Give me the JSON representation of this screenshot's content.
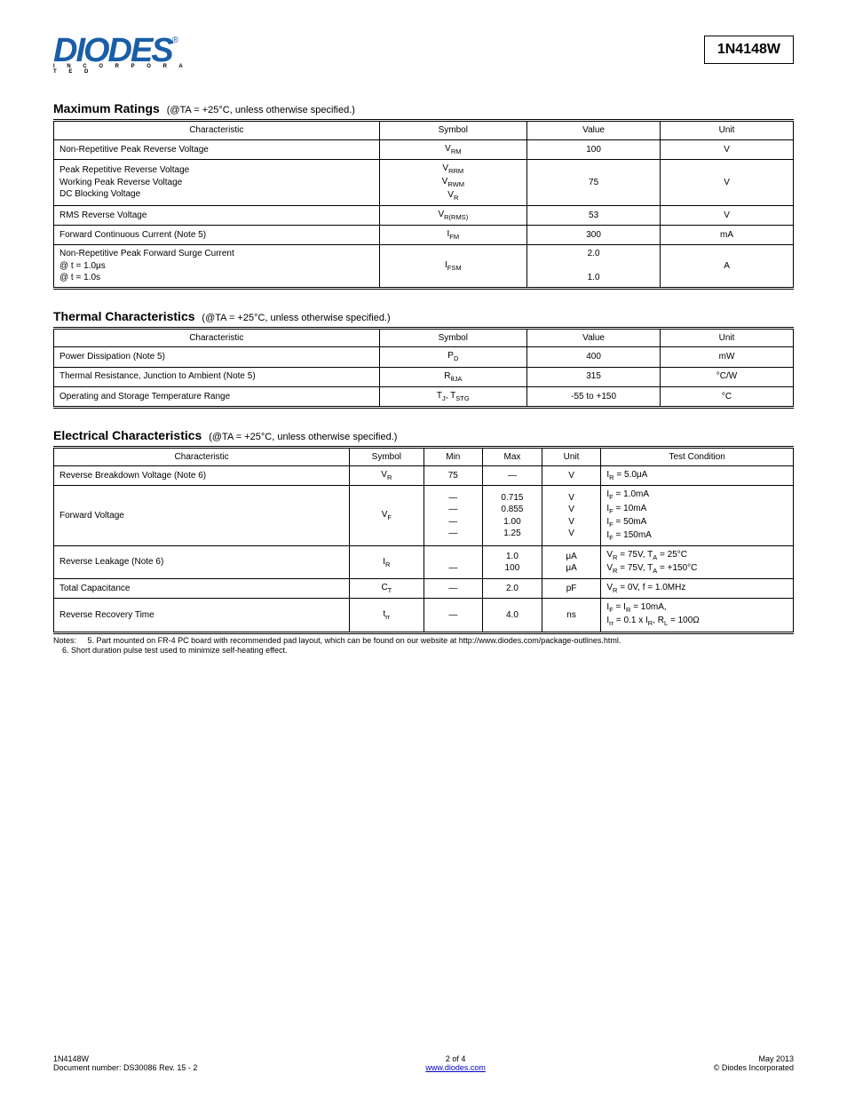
{
  "header": {
    "logo_main": "DIODES",
    "logo_sub": "I N C O R P O R A T E D",
    "part_number": "1N4148W"
  },
  "sections": {
    "ratings": {
      "title": "Maximum Ratings",
      "condition": "(@TA = +25°C, unless otherwise specified.)",
      "columns": [
        "Characteristic",
        "Symbol",
        "Value",
        "Unit"
      ],
      "col_widths": [
        "44%",
        "20%",
        "18%",
        "18%"
      ],
      "rows": [
        {
          "char": "Non-Repetitive Peak Reverse Voltage",
          "sym": "V<sub>RM</sub>",
          "val": "100",
          "unit": "V"
        },
        {
          "char": "Peak Repetitive Reverse Voltage<br>Working Peak Reverse Voltage<br>DC Blocking Voltage",
          "sym": "V<sub>RRM</sub><br>V<sub>RWM</sub><br>V<sub>R</sub>",
          "val": "75",
          "unit": "V"
        },
        {
          "char": "RMS Reverse Voltage",
          "sym": "V<sub>R(RMS)</sub>",
          "val": "53",
          "unit": "V"
        },
        {
          "char": "Forward Continuous Current (Note 5)",
          "sym": "I<sub>FM</sub>",
          "val": "300",
          "unit": "mA"
        },
        {
          "char": "Non-Repetitive Peak Forward Surge Current<br>@ t = 1.0μs<br>@ t = 1.0s",
          "sym": "I<sub>FSM</sub>",
          "val": "2.0<br><br>1.0",
          "unit": "A"
        }
      ]
    },
    "thermal": {
      "title": "Thermal Characteristics",
      "condition": "(@TA = +25°C, unless otherwise specified.)",
      "columns": [
        "Characteristic",
        "Symbol",
        "Value",
        "Unit"
      ],
      "col_widths": [
        "44%",
        "20%",
        "18%",
        "18%"
      ],
      "rows": [
        {
          "char": "Power Dissipation (Note 5)",
          "sym": "P<sub>D</sub>",
          "val": "400",
          "unit": "mW"
        },
        {
          "char": "Thermal Resistance, Junction to Ambient (Note 5)",
          "sym": "R<sub>θJA</sub>",
          "val": "315",
          "unit": "°C/W"
        },
        {
          "char": "Operating and Storage Temperature Range",
          "sym": "T<sub>J</sub>, T<sub>STG</sub>",
          "val": "-55 to +150",
          "unit": "°C"
        }
      ]
    },
    "electrical": {
      "title": "Electrical Characteristics",
      "condition": "(@TA = +25°C, unless otherwise specified.)",
      "columns": [
        "Characteristic",
        "Symbol",
        "Min",
        "Max",
        "Unit",
        "Test Condition"
      ],
      "col_widths": [
        "40%",
        "10%",
        "8%",
        "8%",
        "8%",
        "26%"
      ],
      "rows": [
        {
          "char": "Reverse Breakdown Voltage (Note 6)",
          "sym": "V<sub>R</sub>",
          "min": "75",
          "max": "—",
          "unit": "V",
          "cond": "I<sub>R</sub> = 5.0μA"
        },
        {
          "char": "Forward Voltage",
          "sym": "V<sub>F</sub>",
          "min": "—<br>—<br>—<br>—",
          "max": "0.715<br>0.855<br>1.00<br>1.25",
          "unit": "V<br>V<br>V<br>V",
          "cond": "I<sub>F</sub> = 1.0mA<br>I<sub>F</sub> = 10mA<br>I<sub>F</sub> = 50mA<br>I<sub>F</sub> = 150mA"
        },
        {
          "char": "Reverse Leakage (Note 6)",
          "sym": "I<sub>R</sub>",
          "min": "<br>—<br>",
          "max": "1.0<br>100",
          "unit": "μA<br>μA",
          "cond": "V<sub>R</sub> = 75V, T<sub>A</sub> = 25°C<br>V<sub>R</sub> = 75V, T<sub>A</sub> = +150°C"
        },
        {
          "char": "Total Capacitance",
          "sym": "C<sub>T</sub>",
          "min": "—",
          "max": "2.0",
          "unit": "pF",
          "cond": "V<sub>R</sub> = 0V, f = 1.0MHz"
        },
        {
          "char": "Reverse Recovery Time",
          "sym": "t<sub>rr</sub>",
          "min": "—",
          "max": "4.0",
          "unit": "ns",
          "cond": "I<sub>F</sub> = I<sub>R</sub> = 10mA,<br>I<sub>rr</sub> = 0.1 x I<sub>R</sub>, R<sub>L</sub> = 100Ω"
        }
      ]
    }
  },
  "notes": {
    "label": "Notes:",
    "items": [
      "5. Part mounted on FR-4 PC board with recommended pad layout, which can be found on our website at http://www.diodes.com/package-outlines.html.",
      "6. Short duration pulse test used to minimize self-heating effect."
    ]
  },
  "footer": {
    "left_line1": "1N4148W",
    "left_line2": "Document number: DS30086 Rev. 15 - 2",
    "center_line1": "2 of 4",
    "center_url": "www.diodes.com",
    "right_line1": "May 2013",
    "right_line2": "© Diodes Incorporated"
  }
}
